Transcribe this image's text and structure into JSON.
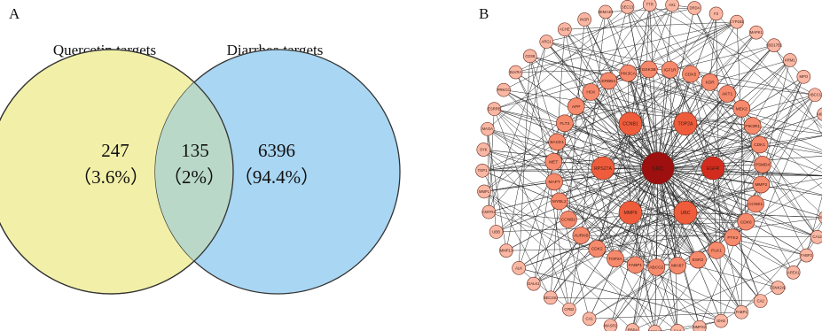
{
  "panels": {
    "a_label": "A",
    "b_label": "B"
  },
  "venn": {
    "left_title": "Quercetin targets",
    "right_title": "Diarrhea targets",
    "left_only": {
      "count": "247",
      "pct": "（3.6%）"
    },
    "overlap": {
      "count": "135",
      "pct": "（2%）"
    },
    "right_only": {
      "count": "6396",
      "pct": "（94.4%）"
    },
    "colors": {
      "left": "#f2f0a8",
      "right": "#a9d6f2",
      "overlap": "#b9d8c8",
      "stroke": "#333333"
    }
  },
  "network": {
    "node_colors": {
      "darkest": "#9e0f0f",
      "dark": "#d32c1e",
      "mid": "#ef5c3c",
      "light": "#f68a6d",
      "pale": "#f9b7a4"
    },
    "hub": "SRC",
    "hubs": [
      "TOP2A",
      "EGFR",
      "SRC",
      "UBC",
      "MMP9",
      "RPS27A",
      "CCNB1"
    ],
    "mid_ring": [
      "GSK3B",
      "IGF1R",
      "CDK5",
      "KDR",
      "AKT1",
      "MEK2",
      "PIK3R1",
      "CDK1",
      "PSMD4",
      "MMP2",
      "CCNE1",
      "CDK6",
      "PTK2",
      "PLK1",
      "ESR2",
      "MKI67",
      "ABCG2",
      "FABP1",
      "TOP2A",
      "CDK2",
      "AURKB",
      "CCNB2",
      "MYBL2",
      "MAPT",
      "MET",
      "BACE1",
      "FLT3",
      "APP",
      "HCK",
      "ERBB4",
      "PIK3CA"
    ],
    "outer_ring": [
      "DRD4",
      "F2",
      "CYP1B1",
      "MAPK1",
      "HSD17B1",
      "KRM1",
      "MPO",
      "ABCC1",
      "AKR1C1",
      "TYR",
      "POLQ",
      "AHR",
      "PLAA",
      "SRSF4",
      "CA12",
      "FABP2",
      "APEX1",
      "CSNK2A1",
      "CA2",
      "FABP1",
      "IDH2",
      "NMPS2",
      "CA4",
      "SETD8T",
      "RBP4",
      "MASP2",
      "CA1",
      "CPB2",
      "SEC24C",
      "GALK1",
      "ALK",
      "MMP13",
      "UBB",
      "CMTR1",
      "MMP1",
      "TOP1",
      "SYK",
      "MAOA",
      "ESRRB",
      "PRKCC",
      "BLVRA",
      "CD38",
      "ARG1",
      "ACHE",
      "INSR",
      "SEMA4D",
      "SEC13",
      "TTR",
      "AXL"
    ]
  }
}
